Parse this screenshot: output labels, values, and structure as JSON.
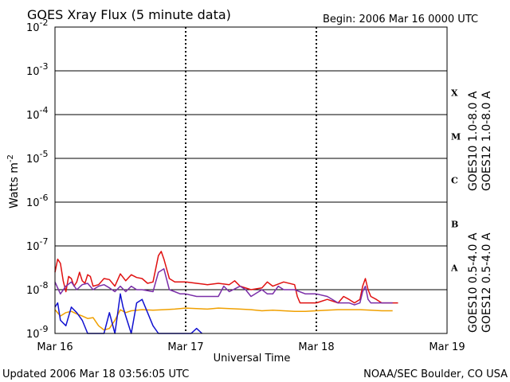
{
  "header": {
    "title": "GOES Xray Flux (5 minute data)",
    "begin": "Begin:  2006 Mar 16 0000 UTC"
  },
  "footer": {
    "updated": "Updated 2006 Mar 18 03:56:05 UTC",
    "credit": "NOAA/SEC Boulder, CO USA"
  },
  "colors": {
    "goes10_long": "#7a2ea8",
    "goes12_long": "#e01010",
    "goes10_short": "#f0a000",
    "goes12_short": "#1010d0"
  },
  "chart_data": {
    "type": "line",
    "title": "GOES Xray Flux (5 minute data)",
    "xlabel": "Universal Time",
    "ylabel": "Watts m",
    "ylabel_sup": "-2",
    "yscale": "log",
    "ylim": [
      1e-09,
      0.01
    ],
    "xlim": [
      "2006-03-16T00:00Z",
      "2006-03-19T00:00Z"
    ],
    "x_ticks": [
      "Mar 16",
      "Mar 17",
      "Mar 18",
      "Mar 19"
    ],
    "y_ticks": [
      {
        "base": "10",
        "exp": "-9"
      },
      {
        "base": "10",
        "exp": "-8"
      },
      {
        "base": "10",
        "exp": "-7"
      },
      {
        "base": "10",
        "exp": "-6"
      },
      {
        "base": "10",
        "exp": "-5"
      },
      {
        "base": "10",
        "exp": "-4"
      },
      {
        "base": "10",
        "exp": "-3"
      },
      {
        "base": "10",
        "exp": "-2"
      }
    ],
    "flare_classes": [
      "A",
      "B",
      "C",
      "M",
      "X"
    ],
    "grid": true,
    "legend_right": [
      {
        "label": "GOES10 1.0-8.0 A",
        "color": "#7a2ea8"
      },
      {
        "label": "GOES12 1.0-8.0 A",
        "color": "#e01010"
      }
    ],
    "legend_left": [
      {
        "label": "GOES10 0.5-4.0 A",
        "color": "#f0a000"
      },
      {
        "label": "GOES12 0.5-4.0 A",
        "color": "#1010d0"
      }
    ],
    "series": [
      {
        "name": "GOES12 1.0-8.0 A",
        "color": "#e01010",
        "points": [
          [
            0,
            2.5e-08
          ],
          [
            0.5,
            5e-08
          ],
          [
            1,
            4e-08
          ],
          [
            1.5,
            1.6e-08
          ],
          [
            2,
            9e-09
          ],
          [
            2.5,
            2e-08
          ],
          [
            3,
            1.8e-08
          ],
          [
            3.5,
            1.2e-08
          ],
          [
            4,
            1.5e-08
          ],
          [
            4.5,
            2.5e-08
          ],
          [
            5,
            1.6e-08
          ],
          [
            5.5,
            1.4e-08
          ],
          [
            6,
            2.2e-08
          ],
          [
            6.5,
            2e-08
          ],
          [
            7,
            1.2e-08
          ],
          [
            8,
            1.3e-08
          ],
          [
            9,
            1.8e-08
          ],
          [
            10,
            1.7e-08
          ],
          [
            11,
            1.2e-08
          ],
          [
            12,
            2.3e-08
          ],
          [
            13,
            1.6e-08
          ],
          [
            14,
            2.2e-08
          ],
          [
            15,
            1.9e-08
          ],
          [
            16,
            1.8e-08
          ],
          [
            17,
            1.4e-08
          ],
          [
            18,
            1.5e-08
          ],
          [
            18.5,
            3e-08
          ],
          [
            19,
            6e-08
          ],
          [
            19.5,
            7.5e-08
          ],
          [
            20,
            5e-08
          ],
          [
            20.5,
            3e-08
          ],
          [
            21,
            1.8e-08
          ],
          [
            22,
            1.5e-08
          ],
          [
            24,
            1.5e-08
          ],
          [
            26,
            1.4e-08
          ],
          [
            28,
            1.3e-08
          ],
          [
            30,
            1.4e-08
          ],
          [
            32,
            1.3e-08
          ],
          [
            33,
            1.6e-08
          ],
          [
            34,
            1.2e-08
          ],
          [
            36,
            1e-08
          ],
          [
            38,
            1.1e-08
          ],
          [
            39,
            1.5e-08
          ],
          [
            40,
            1.2e-08
          ],
          [
            42,
            1.5e-08
          ],
          [
            44,
            1.3e-08
          ],
          [
            44.5,
            7e-09
          ],
          [
            45,
            5e-09
          ],
          [
            46,
            5e-09
          ],
          [
            48,
            5e-09
          ],
          [
            50,
            6e-09
          ],
          [
            52,
            5e-09
          ],
          [
            53,
            7e-09
          ],
          [
            54,
            6e-09
          ],
          [
            55,
            5e-09
          ],
          [
            56,
            6e-09
          ],
          [
            56.5,
            1.2e-08
          ],
          [
            57,
            1.8e-08
          ],
          [
            57.5,
            1e-08
          ],
          [
            58,
            7e-09
          ],
          [
            59,
            6e-09
          ],
          [
            60,
            5e-09
          ],
          [
            61,
            5e-09
          ],
          [
            62,
            5e-09
          ],
          [
            63,
            5e-09
          ]
        ]
      },
      {
        "name": "GOES10 1.0-8.0 A",
        "color": "#7a2ea8",
        "points": [
          [
            0,
            1.5e-08
          ],
          [
            1,
            8e-09
          ],
          [
            2,
            1.2e-08
          ],
          [
            3,
            1.5e-08
          ],
          [
            4,
            1e-08
          ],
          [
            5,
            1.3e-08
          ],
          [
            6,
            1.4e-08
          ],
          [
            7,
            1e-08
          ],
          [
            8,
            1.2e-08
          ],
          [
            9,
            1.3e-08
          ],
          [
            10,
            1.1e-08
          ],
          [
            11,
            9e-09
          ],
          [
            12,
            1.2e-08
          ],
          [
            13,
            9e-09
          ],
          [
            14,
            1.2e-08
          ],
          [
            15,
            1e-08
          ],
          [
            16,
            1e-08
          ],
          [
            18,
            9e-09
          ],
          [
            19,
            2.5e-08
          ],
          [
            20,
            3e-08
          ],
          [
            21,
            1e-08
          ],
          [
            22,
            9e-09
          ],
          [
            23,
            8e-09
          ],
          [
            24,
            8e-09
          ],
          [
            26,
            7e-09
          ],
          [
            28,
            7e-09
          ],
          [
            30,
            7e-09
          ],
          [
            31,
            1.2e-08
          ],
          [
            32,
            9e-09
          ],
          [
            34,
            1.2e-08
          ],
          [
            35,
            1e-08
          ],
          [
            36,
            7e-09
          ],
          [
            38,
            1e-08
          ],
          [
            39,
            8e-09
          ],
          [
            40,
            8e-09
          ],
          [
            41,
            1.2e-08
          ],
          [
            42,
            1e-08
          ],
          [
            44,
            1e-08
          ],
          [
            46,
            8e-09
          ],
          [
            48,
            8e-09
          ],
          [
            50,
            7e-09
          ],
          [
            52,
            5e-09
          ],
          [
            54,
            5e-09
          ],
          [
            55,
            4.5e-09
          ],
          [
            56,
            5e-09
          ],
          [
            56.5,
            9e-09
          ],
          [
            57,
            1.2e-08
          ],
          [
            57.5,
            6e-09
          ],
          [
            58,
            5e-09
          ],
          [
            60,
            5e-09
          ],
          [
            62,
            5e-09
          ]
        ]
      },
      {
        "name": "GOES10 0.5-4.0 A",
        "color": "#f0a000",
        "points": [
          [
            0,
            3.5e-09
          ],
          [
            1,
            2.5e-09
          ],
          [
            2,
            3e-09
          ],
          [
            3,
            3.2e-09
          ],
          [
            4,
            2.8e-09
          ],
          [
            5,
            2.5e-09
          ],
          [
            6,
            2.2e-09
          ],
          [
            7,
            2.3e-09
          ],
          [
            8,
            1.5e-09
          ],
          [
            9,
            1.2e-09
          ],
          [
            10,
            1.3e-09
          ],
          [
            11,
            2e-09
          ],
          [
            12,
            3.5e-09
          ],
          [
            13,
            3e-09
          ],
          [
            14,
            3.3e-09
          ],
          [
            16,
            3.5e-09
          ],
          [
            18,
            3.4e-09
          ],
          [
            20,
            3.5e-09
          ],
          [
            22,
            3.6e-09
          ],
          [
            24,
            3.8e-09
          ],
          [
            26,
            3.7e-09
          ],
          [
            28,
            3.6e-09
          ],
          [
            30,
            3.8e-09
          ],
          [
            32,
            3.7e-09
          ],
          [
            34,
            3.6e-09
          ],
          [
            36,
            3.5e-09
          ],
          [
            38,
            3.3e-09
          ],
          [
            40,
            3.4e-09
          ],
          [
            42,
            3.3e-09
          ],
          [
            44,
            3.2e-09
          ],
          [
            46,
            3.2e-09
          ],
          [
            48,
            3.3e-09
          ],
          [
            50,
            3.4e-09
          ],
          [
            52,
            3.5e-09
          ],
          [
            54,
            3.5e-09
          ],
          [
            56,
            3.5e-09
          ],
          [
            58,
            3.4e-09
          ],
          [
            60,
            3.3e-09
          ],
          [
            62,
            3.3e-09
          ]
        ]
      },
      {
        "name": "GOES12 0.5-4.0 A",
        "color": "#1010d0",
        "points": [
          [
            0,
            4e-09
          ],
          [
            0.5,
            5e-09
          ],
          [
            1,
            2e-09
          ],
          [
            2,
            1.5e-09
          ],
          [
            3,
            4e-09
          ],
          [
            4,
            3e-09
          ],
          [
            5,
            2e-09
          ],
          [
            6,
            1e-09
          ],
          [
            7,
            1e-09
          ],
          [
            8,
            1e-09
          ],
          [
            9,
            1e-09
          ],
          [
            10,
            3e-09
          ],
          [
            11,
            1e-09
          ],
          [
            12,
            8e-09
          ],
          [
            12.5,
            4e-09
          ],
          [
            13,
            2.5e-09
          ],
          [
            14,
            1e-09
          ],
          [
            15,
            5e-09
          ],
          [
            16,
            6e-09
          ],
          [
            17,
            3e-09
          ],
          [
            18,
            1.5e-09
          ],
          [
            19,
            1e-09
          ],
          [
            20,
            1e-09
          ],
          [
            21,
            1e-09
          ],
          [
            22,
            1e-09
          ],
          [
            23,
            1e-09
          ],
          [
            24,
            1e-09
          ],
          [
            25,
            1e-09
          ],
          [
            26,
            1.3e-09
          ],
          [
            27,
            1e-09
          ]
        ]
      }
    ]
  }
}
